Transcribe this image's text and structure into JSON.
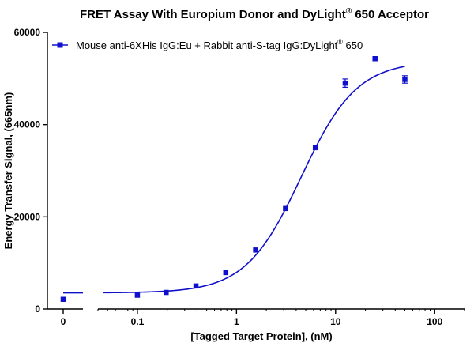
{
  "chart_data": {
    "type": "scatter",
    "title": "FRET Assay With Europium Donor and DyLight",
    "title_sup": "®",
    "title_suffix": " 650 Acceptor",
    "xlabel": "[Tagged Target Protein], (nM)",
    "ylabel": "Energy Transfer Signal, (665nm)",
    "x_scale": "log",
    "x_axis_break": true,
    "xlim": [
      0.04,
      200
    ],
    "ylim": [
      0,
      60000
    ],
    "x_ticks": [
      {
        "value": 0.1,
        "label": "0.1"
      },
      {
        "value": 1,
        "label": "1"
      },
      {
        "value": 10,
        "label": "10"
      },
      {
        "value": 100,
        "label": "100"
      }
    ],
    "zero_tick_label": "0",
    "y_ticks": [
      {
        "value": 0,
        "label": "0"
      },
      {
        "value": 20000,
        "label": "20000"
      },
      {
        "value": 40000,
        "label": "40000"
      },
      {
        "value": 60000,
        "label": "60000"
      }
    ],
    "legend": {
      "placement": "top-left",
      "label": "Mouse anti-6XHis IgG:Eu + Rabbit anti-S-tag IgG:DyLight",
      "label_sup": "®",
      "label_suffix": " 650"
    },
    "grid": false,
    "color": "#1010cc",
    "series": [
      {
        "zero_point": {
          "x": 0,
          "y": 2100
        },
        "points": [
          {
            "x": 0.1,
            "y": 3000
          },
          {
            "x": 0.195,
            "y": 3600
          },
          {
            "x": 0.39,
            "y": 5000
          },
          {
            "x": 0.78,
            "y": 7900
          },
          {
            "x": 1.56,
            "y": 12800
          },
          {
            "x": 3.125,
            "y": 21800
          },
          {
            "x": 6.25,
            "y": 35000
          },
          {
            "x": 12.5,
            "y": 49000,
            "err": 900
          },
          {
            "x": 25,
            "y": 54300
          },
          {
            "x": 50,
            "y": 49800,
            "err": 800
          }
        ],
        "fit": {
          "model": "4PL",
          "bottom": 3500,
          "top": 53800,
          "ec50": 4.5,
          "hill": 1.55,
          "x_range": [
            0.045,
            50
          ],
          "zero_segment_y": 3500
        }
      }
    ]
  }
}
